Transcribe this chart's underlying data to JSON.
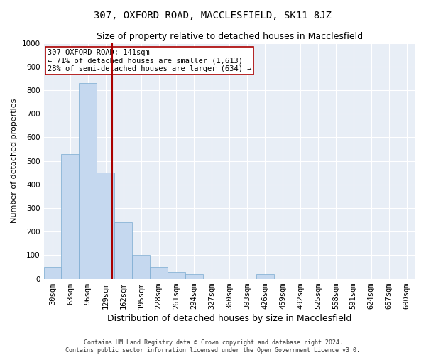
{
  "title": "307, OXFORD ROAD, MACCLESFIELD, SK11 8JZ",
  "subtitle": "Size of property relative to detached houses in Macclesfield",
  "xlabel": "Distribution of detached houses by size in Macclesfield",
  "ylabel": "Number of detached properties",
  "categories": [
    "30sqm",
    "63sqm",
    "96sqm",
    "129sqm",
    "162sqm",
    "195sqm",
    "228sqm",
    "261sqm",
    "294sqm",
    "327sqm",
    "360sqm",
    "393sqm",
    "426sqm",
    "459sqm",
    "492sqm",
    "525sqm",
    "558sqm",
    "591sqm",
    "624sqm",
    "657sqm",
    "690sqm"
  ],
  "values": [
    50,
    530,
    830,
    450,
    240,
    100,
    50,
    30,
    20,
    0,
    0,
    0,
    20,
    0,
    0,
    0,
    0,
    0,
    0,
    0,
    0
  ],
  "bar_color": "#c5d8ef",
  "bar_edgecolor": "#7aaad0",
  "ylim": [
    0,
    1000
  ],
  "yticks": [
    0,
    100,
    200,
    300,
    400,
    500,
    600,
    700,
    800,
    900,
    1000
  ],
  "vline_color": "#aa0000",
  "background_color": "#e8eef6",
  "grid_color": "#d0d8e8",
  "annotation_text": "307 OXFORD ROAD: 141sqm\n← 71% of detached houses are smaller (1,613)\n28% of semi-detached houses are larger (634) →",
  "annotation_box_color": "#aa0000",
  "footer_line1": "Contains HM Land Registry data © Crown copyright and database right 2024.",
  "footer_line2": "Contains public sector information licensed under the Open Government Licence v3.0.",
  "title_fontsize": 10,
  "subtitle_fontsize": 9,
  "xlabel_fontsize": 9,
  "ylabel_fontsize": 8,
  "tick_fontsize": 7.5,
  "annot_fontsize": 7.5,
  "footer_fontsize": 6
}
